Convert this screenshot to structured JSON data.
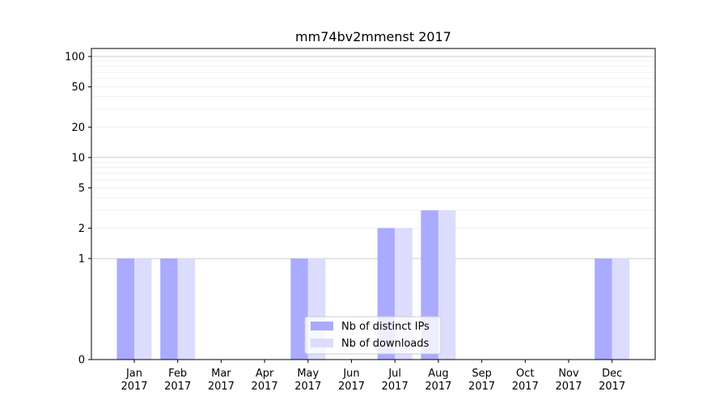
{
  "chart_data": {
    "type": "bar",
    "title": "mm74bv2mmenst 2017",
    "xlabel": "",
    "ylabel": "",
    "y_scale": "symlog",
    "ylim": [
      0,
      120
    ],
    "y_ticks": [
      0,
      1,
      2,
      5,
      10,
      20,
      50,
      100
    ],
    "y_tick_labels": [
      "0",
      "1",
      "2",
      "5",
      "10",
      "20",
      "50",
      "100"
    ],
    "grid": "y",
    "legend_position": "bottom-center",
    "categories": [
      {
        "month": "Jan",
        "year": "2017"
      },
      {
        "month": "Feb",
        "year": "2017"
      },
      {
        "month": "Mar",
        "year": "2017"
      },
      {
        "month": "Apr",
        "year": "2017"
      },
      {
        "month": "May",
        "year": "2017"
      },
      {
        "month": "Jun",
        "year": "2017"
      },
      {
        "month": "Jul",
        "year": "2017"
      },
      {
        "month": "Aug",
        "year": "2017"
      },
      {
        "month": "Sep",
        "year": "2017"
      },
      {
        "month": "Oct",
        "year": "2017"
      },
      {
        "month": "Nov",
        "year": "2017"
      },
      {
        "month": "Dec",
        "year": "2017"
      }
    ],
    "series": [
      {
        "name": "Nb of distinct IPs",
        "color": "#aaaaff",
        "values": [
          1,
          1,
          0,
          0,
          1,
          0,
          2,
          3,
          0,
          0,
          0,
          1
        ]
      },
      {
        "name": "Nb of downloads",
        "color": "#dcdcff",
        "values": [
          1,
          1,
          0,
          0,
          1,
          0,
          2,
          3,
          0,
          0,
          0,
          1
        ]
      }
    ]
  }
}
